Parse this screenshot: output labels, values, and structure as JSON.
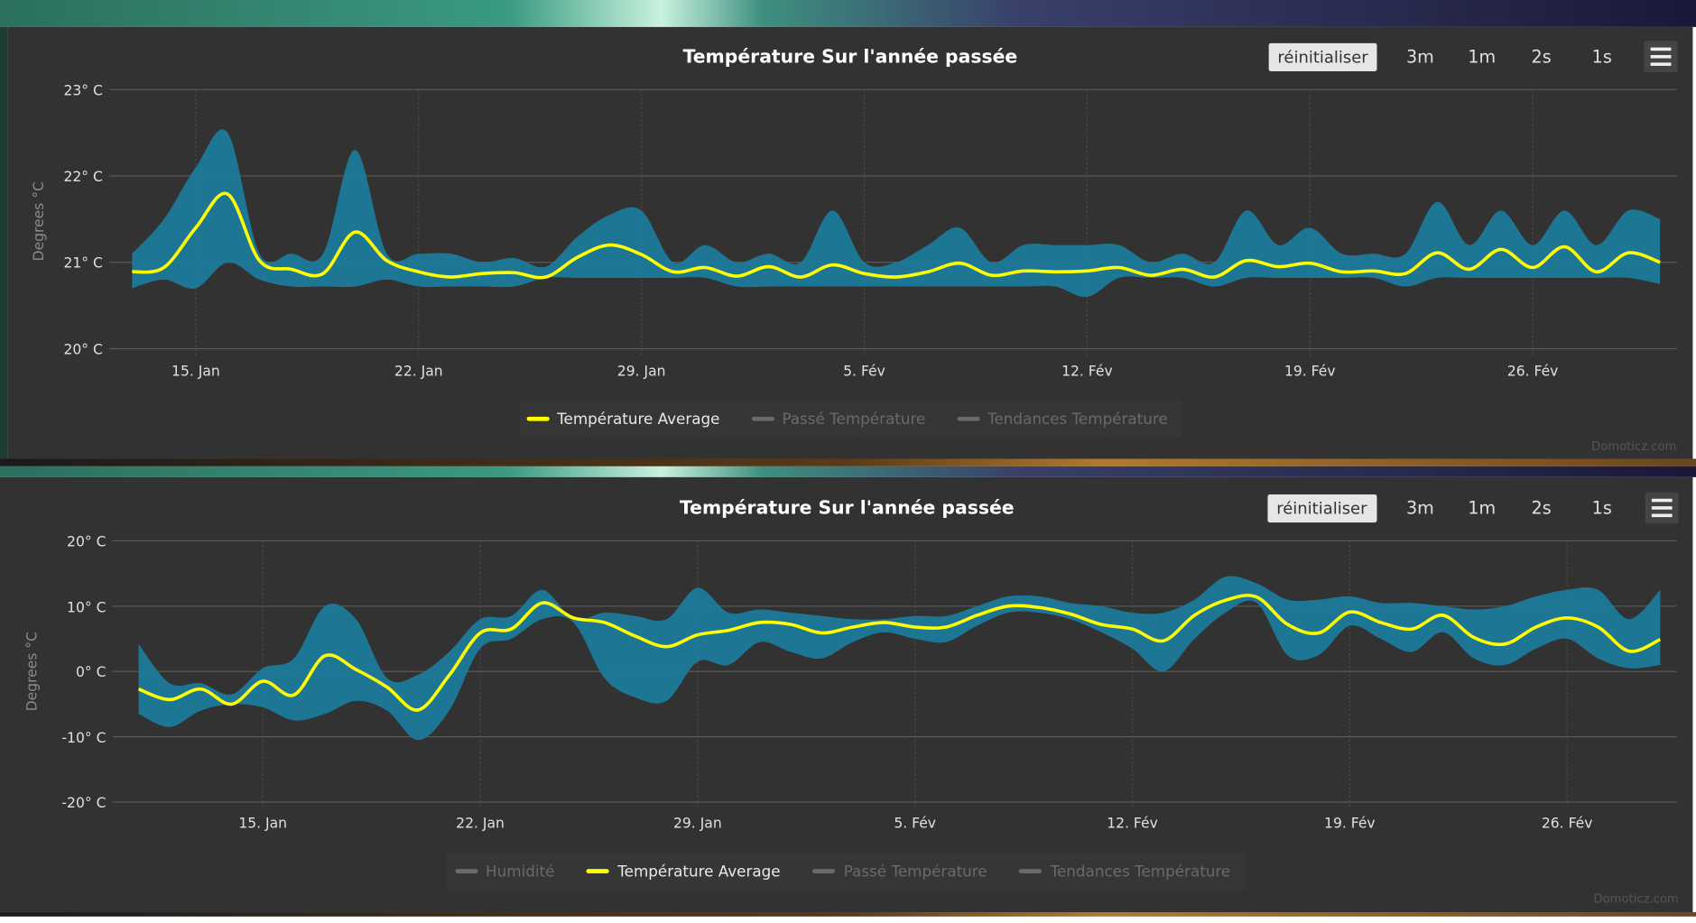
{
  "colors": {
    "panel": "#323232",
    "band": "#1e7a9b",
    "average": "#ffff00",
    "grid": "#5a5a5a",
    "legend_inactive": "#6a6a6a"
  },
  "charts": [
    {
      "title": "Température Sur l'année passée",
      "buttons": {
        "reset": "réinitialiser",
        "zoom": [
          "3m",
          "1m",
          "2s",
          "1s"
        ],
        "menu_icon": "hamburger-menu-icon"
      },
      "y_axis_title": "Degrees °C",
      "y_ticks": [
        "23° C",
        "22° C",
        "21° C",
        "20° C"
      ],
      "x_ticks": [
        "15. Jan",
        "22. Jan",
        "29. Jan",
        "5. Fév",
        "12. Fév",
        "19. Fév",
        "26. Fév"
      ],
      "legend": [
        {
          "label": "Température Average",
          "active": true
        },
        {
          "label": "Passé Température",
          "active": false
        },
        {
          "label": "Tendances Température",
          "active": false
        }
      ],
      "credit": "Domoticz.com"
    },
    {
      "title": "Température Sur l'année passée",
      "buttons": {
        "reset": "réinitialiser",
        "zoom": [
          "3m",
          "1m",
          "2s",
          "1s"
        ],
        "menu_icon": "hamburger-menu-icon"
      },
      "y_axis_title": "Degrees °C",
      "y_ticks": [
        "20° C",
        "10° C",
        "0° C",
        "-10° C",
        "-20° C"
      ],
      "x_ticks": [
        "15. Jan",
        "22. Jan",
        "29. Jan",
        "5. Fév",
        "12. Fév",
        "19. Fév",
        "26. Fév"
      ],
      "legend": [
        {
          "label": "Humidité",
          "active": false
        },
        {
          "label": "Température Average",
          "active": true
        },
        {
          "label": "Passé Température",
          "active": false
        },
        {
          "label": "Tendances Température",
          "active": false
        }
      ],
      "credit": "Domoticz.com"
    }
  ],
  "chart_data": [
    {
      "type": "area",
      "title": "Température Sur l'année passée",
      "ylabel": "Degrees °C",
      "ylim": [
        20,
        23
      ],
      "grid": true,
      "legend_position": "bottom",
      "x": [
        "13. Jan",
        "14. Jan",
        "15. Jan",
        "16. Jan",
        "17. Jan",
        "18. Jan",
        "19. Jan",
        "20. Jan",
        "21. Jan",
        "22. Jan",
        "23. Jan",
        "24. Jan",
        "25. Jan",
        "26. Jan",
        "27. Jan",
        "28. Jan",
        "29. Jan",
        "30. Jan",
        "31. Jan",
        "1. Fév",
        "2. Fév",
        "3. Fév",
        "4. Fév",
        "5. Fév",
        "6. Fév",
        "7. Fév",
        "8. Fév",
        "9. Fév",
        "10. Fév",
        "11. Fév",
        "12. Fév",
        "13. Fév",
        "14. Fév",
        "15. Fév",
        "16. Fév",
        "17. Fév",
        "18. Fév",
        "19. Fév",
        "20. Fév",
        "21. Fév",
        "22. Fév",
        "23. Fév",
        "24. Fév",
        "25. Fév",
        "26. Fév",
        "27. Fév",
        "28. Fév",
        "1. Mar",
        "2. Mar"
      ],
      "series": [
        {
          "name": "Température Average",
          "type": "line",
          "values": [
            20.89,
            20.94,
            21.4,
            21.79,
            21.02,
            20.92,
            20.87,
            21.35,
            21.02,
            20.89,
            20.83,
            20.87,
            20.88,
            20.83,
            21.06,
            21.2,
            21.09,
            20.89,
            20.94,
            20.84,
            20.95,
            20.83,
            20.97,
            20.87,
            20.83,
            20.89,
            20.99,
            20.85,
            20.9,
            20.89,
            20.9,
            20.94,
            20.85,
            20.92,
            20.83,
            21.02,
            20.95,
            20.99,
            20.89,
            20.9,
            20.87,
            21.11,
            20.92,
            21.15,
            20.94,
            21.18,
            20.89,
            21.11,
            21.0
          ]
        },
        {
          "type": "arearange",
          "min": [
            20.7,
            20.8,
            20.7,
            21.0,
            20.8,
            20.72,
            20.72,
            20.72,
            20.8,
            20.72,
            20.72,
            20.72,
            20.72,
            20.82,
            20.82,
            20.82,
            20.82,
            20.82,
            20.82,
            20.72,
            20.72,
            20.72,
            20.72,
            20.72,
            20.72,
            20.72,
            20.72,
            20.72,
            20.72,
            20.72,
            20.6,
            20.82,
            20.82,
            20.82,
            20.72,
            20.82,
            20.82,
            20.82,
            20.82,
            20.82,
            20.72,
            20.82,
            20.82,
            20.82,
            20.82,
            20.82,
            20.82,
            20.82,
            20.75
          ],
          "max": [
            21.1,
            21.5,
            22.1,
            22.5,
            21.1,
            21.1,
            21.1,
            22.3,
            21.1,
            21.1,
            21.1,
            21.0,
            21.05,
            20.95,
            21.3,
            21.55,
            21.6,
            21.0,
            21.2,
            21.0,
            21.1,
            21.0,
            21.6,
            21.0,
            21.0,
            21.2,
            21.4,
            21.0,
            21.2,
            21.2,
            21.2,
            21.2,
            21.0,
            21.1,
            21.0,
            21.6,
            21.2,
            21.4,
            21.1,
            21.1,
            21.1,
            21.7,
            21.2,
            21.6,
            21.2,
            21.6,
            21.2,
            21.6,
            21.5
          ]
        }
      ]
    },
    {
      "type": "area",
      "title": "Température Sur l'année passée",
      "ylabel": "Degrees °C",
      "ylim": [
        -20,
        20
      ],
      "grid": true,
      "legend_position": "bottom",
      "x": [
        "11. Jan",
        "12. Jan",
        "13. Jan",
        "14. Jan",
        "15. Jan",
        "16. Jan",
        "17. Jan",
        "18. Jan",
        "19. Jan",
        "20. Jan",
        "21. Jan",
        "22. Jan",
        "23. Jan",
        "24. Jan",
        "25. Jan",
        "26. Jan",
        "27. Jan",
        "28. Jan",
        "29. Jan",
        "30. Jan",
        "31. Jan",
        "1. Fév",
        "2. Fév",
        "3. Fév",
        "4. Fév",
        "5. Fév",
        "6. Fév",
        "7. Fév",
        "8. Fév",
        "9. Fév",
        "10. Fév",
        "11. Fév",
        "12. Fév",
        "13. Fév",
        "14. Fév",
        "15. Fév",
        "16. Fév",
        "17. Fév",
        "18. Fév",
        "19. Fév",
        "20. Fév",
        "21. Fév",
        "22. Fév",
        "23. Fév",
        "24. Fév",
        "25. Fév",
        "26. Fév",
        "27. Fév",
        "28. Fév",
        "1. Mar"
      ],
      "series": [
        {
          "name": "Température Average",
          "type": "line",
          "values": [
            -2.7,
            -4.3,
            -2.7,
            -5.0,
            -1.5,
            -3.6,
            2.4,
            0.3,
            -2.4,
            -5.9,
            -0.6,
            5.9,
            6.5,
            10.5,
            8.2,
            7.5,
            5.4,
            3.8,
            5.6,
            6.3,
            7.5,
            7.2,
            5.9,
            6.8,
            7.5,
            6.8,
            6.8,
            8.6,
            10.0,
            9.8,
            8.8,
            7.2,
            6.5,
            4.7,
            8.6,
            10.9,
            11.4,
            7.2,
            5.9,
            9.1,
            7.5,
            6.5,
            8.6,
            5.2,
            4.2,
            6.8,
            8.2,
            6.8,
            3.1,
            4.9
          ]
        },
        {
          "type": "arearange",
          "min": [
            -6.5,
            -8.5,
            -6.0,
            -5.0,
            -5.5,
            -7.5,
            -6.5,
            -4.5,
            -6.0,
            -10.5,
            -6.0,
            3.5,
            5.0,
            8.0,
            7.5,
            -1.0,
            -4.0,
            -4.5,
            1.5,
            1.0,
            4.5,
            3.0,
            2.0,
            4.5,
            6.0,
            5.0,
            4.5,
            7.0,
            9.0,
            9.0,
            8.0,
            6.0,
            3.5,
            0.0,
            5.0,
            9.0,
            10.5,
            2.5,
            2.5,
            7.0,
            5.0,
            3.0,
            6.0,
            2.0,
            1.0,
            3.5,
            5.0,
            2.0,
            0.5,
            1.0
          ],
          "max": [
            4.2,
            -1.8,
            -1.8,
            -3.5,
            0.5,
            2.0,
            10.0,
            8.0,
            -1.0,
            -0.5,
            3.0,
            8.0,
            8.5,
            12.5,
            8.0,
            9.0,
            8.5,
            8.0,
            12.8,
            9.0,
            9.5,
            9.0,
            8.5,
            8.0,
            8.0,
            8.5,
            8.5,
            10.0,
            11.5,
            11.5,
            10.5,
            10.0,
            9.0,
            9.0,
            11.0,
            14.5,
            13.5,
            11.0,
            11.0,
            11.5,
            10.5,
            10.5,
            10.0,
            9.5,
            10.0,
            11.5,
            12.5,
            12.5,
            8.0,
            12.5
          ]
        }
      ]
    }
  ]
}
